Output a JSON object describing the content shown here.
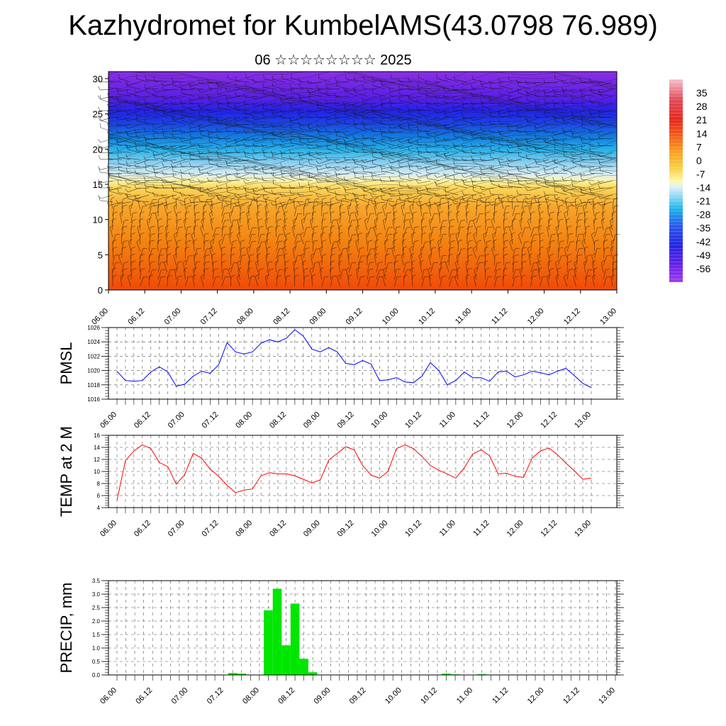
{
  "page": {
    "title": "Kazhydromet for KumbelAMS(43.0798 76.989)",
    "subtitle": "06 ☆☆☆☆☆☆☆☆ 2025"
  },
  "chart_data": [
    {
      "type": "heatmap",
      "name": "cross-section",
      "title": "",
      "xlabel": "",
      "ylabel": "",
      "x_ticks": [
        "06.00",
        "06.12",
        "07.00",
        "07.12",
        "08.00",
        "08.12",
        "09.00",
        "09.12",
        "10.00",
        "10.12",
        "11.00",
        "11.12",
        "12.00",
        "12.12",
        "13.00"
      ],
      "y_ticks": [
        0,
        5,
        10,
        15,
        20,
        25,
        30
      ],
      "ylim": [
        0,
        31
      ],
      "colorbar_labels": [
        35,
        28,
        21,
        14,
        7,
        0,
        -7,
        -14,
        -21,
        -28,
        -35,
        -42,
        -49,
        -56
      ],
      "colorbar_range": [
        -63,
        42
      ],
      "overlay": "wind barbs"
    },
    {
      "type": "line",
      "name": "pmsl",
      "ylabel": "PMSL",
      "x_ticks": [
        "06.00",
        "06.12",
        "07.00",
        "07.12",
        "08.00",
        "08.12",
        "09.00",
        "09.12",
        "10.00",
        "10.12",
        "11.00",
        "11.12",
        "12.00",
        "12.12",
        "13.00"
      ],
      "y_ticks": [
        1016,
        1018,
        1020,
        1022,
        1024,
        1026
      ],
      "ylim": [
        1016,
        1026
      ],
      "color": "#0000ff",
      "step_hours": 3,
      "values": [
        1019.9,
        1018.6,
        1018.5,
        1018.6,
        1019.8,
        1020.5,
        1019.8,
        1017.8,
        1018.1,
        1019.2,
        1019.9,
        1019.6,
        1020.8,
        1023.9,
        1022.6,
        1022.3,
        1022.6,
        1023.8,
        1024.3,
        1024.0,
        1024.5,
        1025.7,
        1024.8,
        1023.0,
        1022.6,
        1023.2,
        1022.6,
        1021.0,
        1020.8,
        1021.4,
        1020.9,
        1018.6,
        1018.7,
        1019.0,
        1018.4,
        1018.3,
        1019.2,
        1021.1,
        1020.0,
        1018.0,
        1018.6,
        1019.8,
        1019.0,
        1019.0,
        1018.5,
        1019.8,
        1019.9,
        1019.1,
        1019.4,
        1019.9,
        1019.7,
        1019.4,
        1019.9,
        1020.3,
        1019.3,
        1018.2,
        1017.6
      ]
    },
    {
      "type": "line",
      "name": "temp2m",
      "ylabel": "TEMP at 2 M",
      "x_ticks": [
        "06.00",
        "06.12",
        "07.00",
        "07.12",
        "08.00",
        "08.12",
        "09.00",
        "09.12",
        "10.00",
        "10.12",
        "11.00",
        "11.12",
        "12.00",
        "12.12",
        "13.00"
      ],
      "y_ticks": [
        4,
        6,
        8,
        10,
        12,
        14,
        16
      ],
      "ylim": [
        4,
        16
      ],
      "color": "#ff0000",
      "step_hours": 3,
      "values": [
        5.2,
        11.8,
        13.4,
        14.4,
        13.8,
        11.5,
        10.8,
        7.9,
        9.5,
        13.0,
        12.2,
        10.4,
        9.2,
        7.7,
        6.5,
        6.9,
        7.1,
        9.3,
        9.8,
        9.6,
        9.6,
        9.3,
        8.7,
        8.1,
        8.6,
        11.9,
        13.0,
        14.1,
        13.6,
        11.0,
        9.4,
        8.9,
        10.0,
        13.8,
        14.4,
        13.8,
        12.5,
        11.0,
        10.2,
        9.6,
        8.9,
        10.6,
        12.9,
        13.6,
        12.6,
        9.6,
        9.7,
        9.2,
        9.0,
        12.2,
        13.4,
        13.9,
        12.8,
        11.4,
        10.1,
        8.7,
        8.9
      ]
    },
    {
      "type": "bar",
      "name": "precip",
      "ylabel": "PRECIP, mm",
      "x_ticks": [
        "06.00",
        "06.12",
        "07.00",
        "07.12",
        "08.00",
        "08.12",
        "09.00",
        "09.12",
        "10.00",
        "10.12",
        "11.00",
        "11.12",
        "12.00",
        "12.12",
        "13.00"
      ],
      "y_ticks": [
        "0.0",
        "0.5",
        "1.0",
        "1.5",
        "2.0",
        "2.5",
        "3.0",
        "3.5"
      ],
      "ylim": [
        0,
        3.5
      ],
      "color": "#00e600",
      "step_hours": 3,
      "values": [
        0,
        0,
        0,
        0,
        0,
        0,
        0,
        0,
        0,
        0,
        0,
        0,
        0,
        0.07,
        0.05,
        0,
        0,
        2.4,
        3.2,
        1.1,
        2.65,
        0.6,
        0.1,
        0,
        0,
        0,
        0,
        0,
        0,
        0,
        0,
        0,
        0,
        0,
        0,
        0,
        0,
        0.05,
        0.02,
        0,
        0.01,
        0.03,
        0,
        0,
        0,
        0,
        0,
        0,
        0,
        0,
        0,
        0,
        0,
        0,
        0,
        0
      ]
    }
  ]
}
